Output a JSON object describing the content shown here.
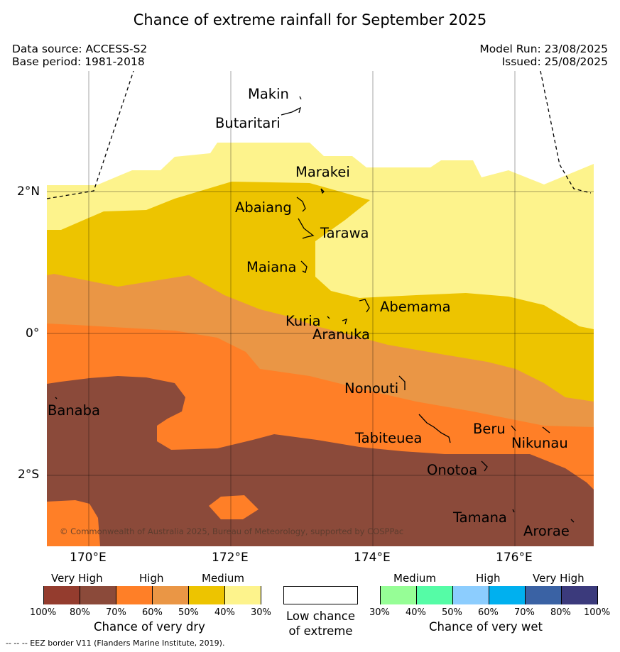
{
  "header": {
    "title": "Chance of extreme rainfall for September 2025",
    "data_source": "Data source: ACCESS-S2",
    "base_period": "Base period: 1981-2018",
    "model_run": "Model Run: 23/08/2025",
    "issued": "Issued: 25/08/2025"
  },
  "map": {
    "lat_labels": [
      "2°N",
      "0°",
      "2°S"
    ],
    "lon_labels": [
      "170°E",
      "172°E",
      "174°E",
      "176°E"
    ],
    "islands": {
      "makin": "Makin",
      "butaritari": "Butaritari",
      "marakei": "Marakei",
      "abaiang": "Abaiang",
      "tarawa": "Tarawa",
      "maiana": "Maiana",
      "abemama": "Abemama",
      "kuria": "Kuria",
      "aranuka": "Aranuka",
      "nonouti": "Nonouti",
      "banaba": "Banaba",
      "beru": "Beru",
      "tabiteuea": "Tabiteuea",
      "nikunau": "Nikunau",
      "onotoa": "Onotoa",
      "tamana": "Tamana",
      "arorae": "Arorae"
    },
    "copyright": "© Commonwealth of Australia 2025, Bureau of Meteorology, supported by COSPPac",
    "colors": {
      "very_dry_80": "#8b4a3a",
      "dry_70": "#ff7f27",
      "dry_60": "#ea9645",
      "dry_50": "#edc400",
      "dry_40": "#fdf38c",
      "low": "#ffffff"
    }
  },
  "legend": {
    "dry": {
      "levels": [
        "Very High",
        "High",
        "Medium"
      ],
      "percents": [
        "100%",
        "80%",
        "70%",
        "60%",
        "50%",
        "40%",
        "30%"
      ],
      "caption": "Chance of very dry",
      "colors": [
        "#943c2e",
        "#8b4a3a",
        "#ff7f27",
        "#ea9645",
        "#edc400",
        "#fdf38c"
      ]
    },
    "low": {
      "caption_line1": "Low chance",
      "caption_line2": "of extreme",
      "color": "#ffffff"
    },
    "wet": {
      "levels": [
        "Medium",
        "High",
        "Very High"
      ],
      "percents": [
        "30%",
        "40%",
        "50%",
        "60%",
        "70%",
        "80%",
        "100%"
      ],
      "caption": "Chance of very wet",
      "colors": [
        "#96fe96",
        "#55fca6",
        "#8ccdfe",
        "#00b0ef",
        "#3a62a4",
        "#3b3a7c"
      ]
    }
  },
  "footer": {
    "eez_note": "--  --  -- EEZ border V11 (Flanders Marine Institute, 2019)."
  }
}
